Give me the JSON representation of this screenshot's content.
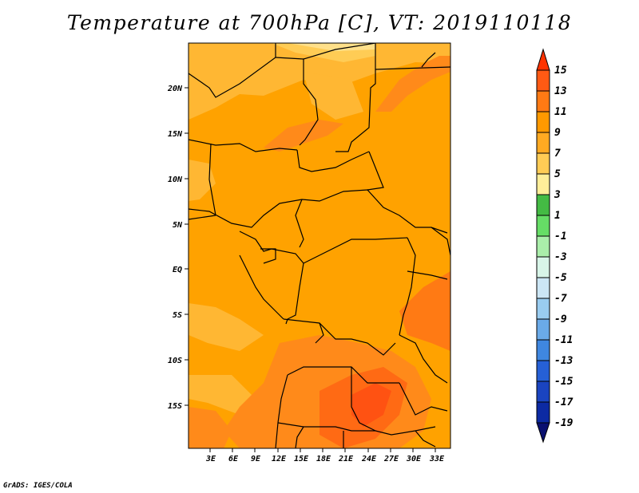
{
  "title": "Temperature at 700hPa [C], VT: 2019110118",
  "credit": "GrADS: IGES/COLA",
  "map": {
    "field": "Temperature at 700hPa",
    "units": "C",
    "valid_time": "2019110118",
    "lon_ticks": [
      "3E",
      "6E",
      "9E",
      "12E",
      "15E",
      "18E",
      "21E",
      "24E",
      "27E",
      "30E",
      "33E"
    ],
    "lat_ticks": [
      "20N",
      "15N",
      "10N",
      "5N",
      "EQ",
      "5S",
      "10S",
      "15S"
    ]
  },
  "colorbar": {
    "levels": [
      "15",
      "13",
      "11",
      "9",
      "7",
      "5",
      "3",
      "1",
      "-1",
      "-3",
      "-5",
      "-7",
      "-9",
      "-11",
      "-13",
      "-15",
      "-17",
      "-19"
    ],
    "colors": [
      "#ff3300",
      "#ff5a14",
      "#ff7a14",
      "#ff9900",
      "#ffaa22",
      "#ffcc55",
      "#ffee99",
      "#44bb44",
      "#66dd66",
      "#aaeeaa",
      "#d8f5e8",
      "#cce6f5",
      "#99ccf0",
      "#6aaae8",
      "#3f87e0",
      "#2660d6",
      "#1a44c0",
      "#0c2aa3",
      "#0a1070"
    ]
  }
}
